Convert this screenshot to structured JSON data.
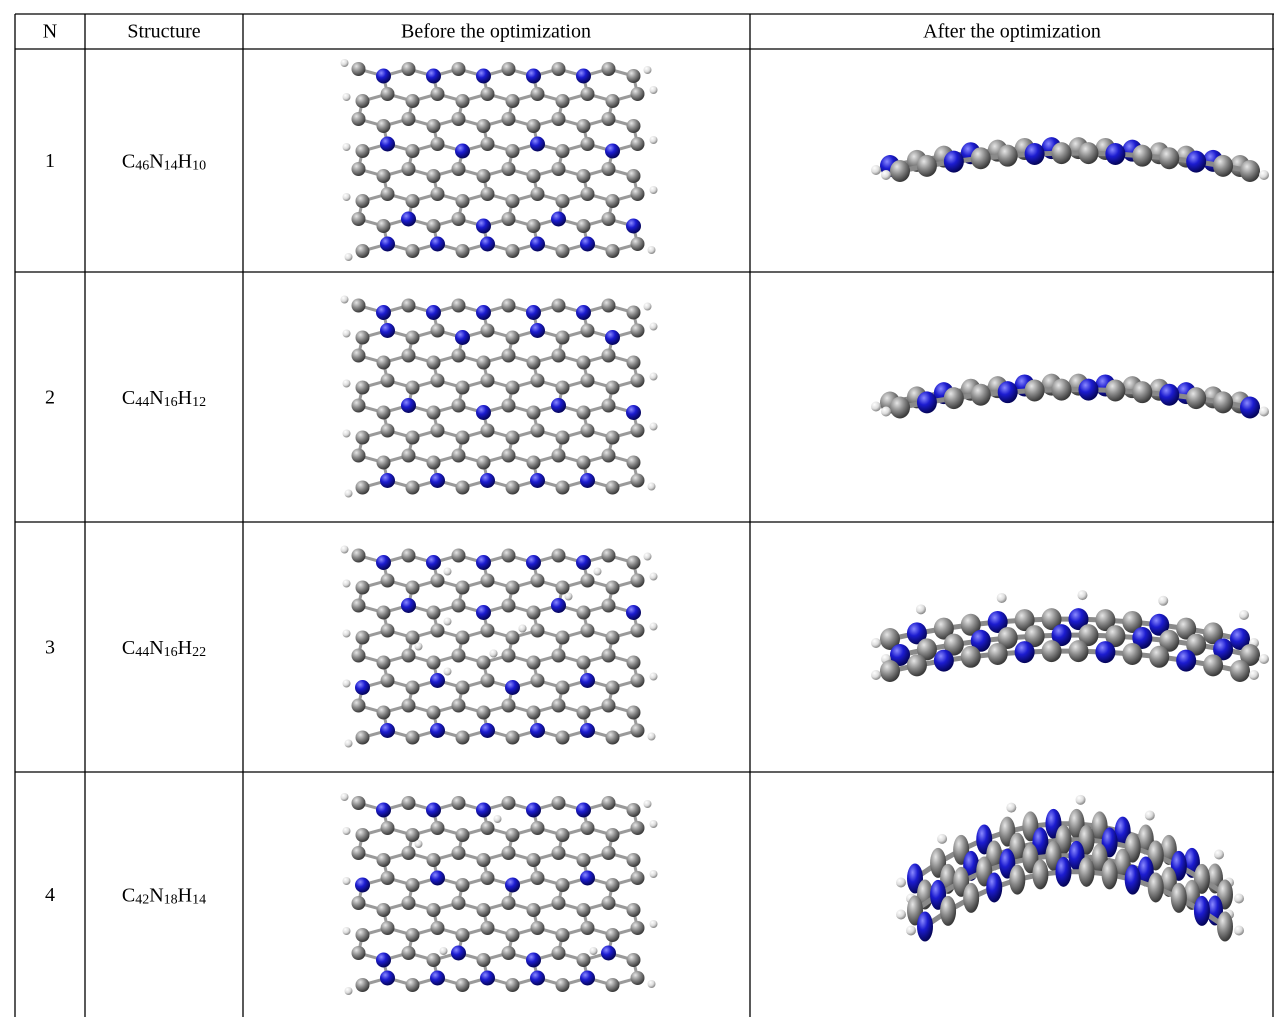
{
  "table": {
    "headers": [
      "N",
      "Structure",
      "Before the optimization",
      "After the optimization"
    ],
    "rows": [
      {
        "n": 1,
        "formula": [
          [
            "C",
            "46"
          ],
          [
            "N",
            "14"
          ],
          [
            "H",
            "10"
          ]
        ]
      },
      {
        "n": 2,
        "formula": [
          [
            "C",
            "44"
          ],
          [
            "N",
            "16"
          ],
          [
            "H",
            "12"
          ]
        ]
      },
      {
        "n": 3,
        "formula": [
          [
            "C",
            "44"
          ],
          [
            "N",
            "16"
          ],
          [
            "H",
            "22"
          ]
        ]
      },
      {
        "n": 4,
        "formula": [
          [
            "C",
            "42"
          ],
          [
            "N",
            "18"
          ],
          [
            "H",
            "14"
          ]
        ]
      }
    ]
  }
}
